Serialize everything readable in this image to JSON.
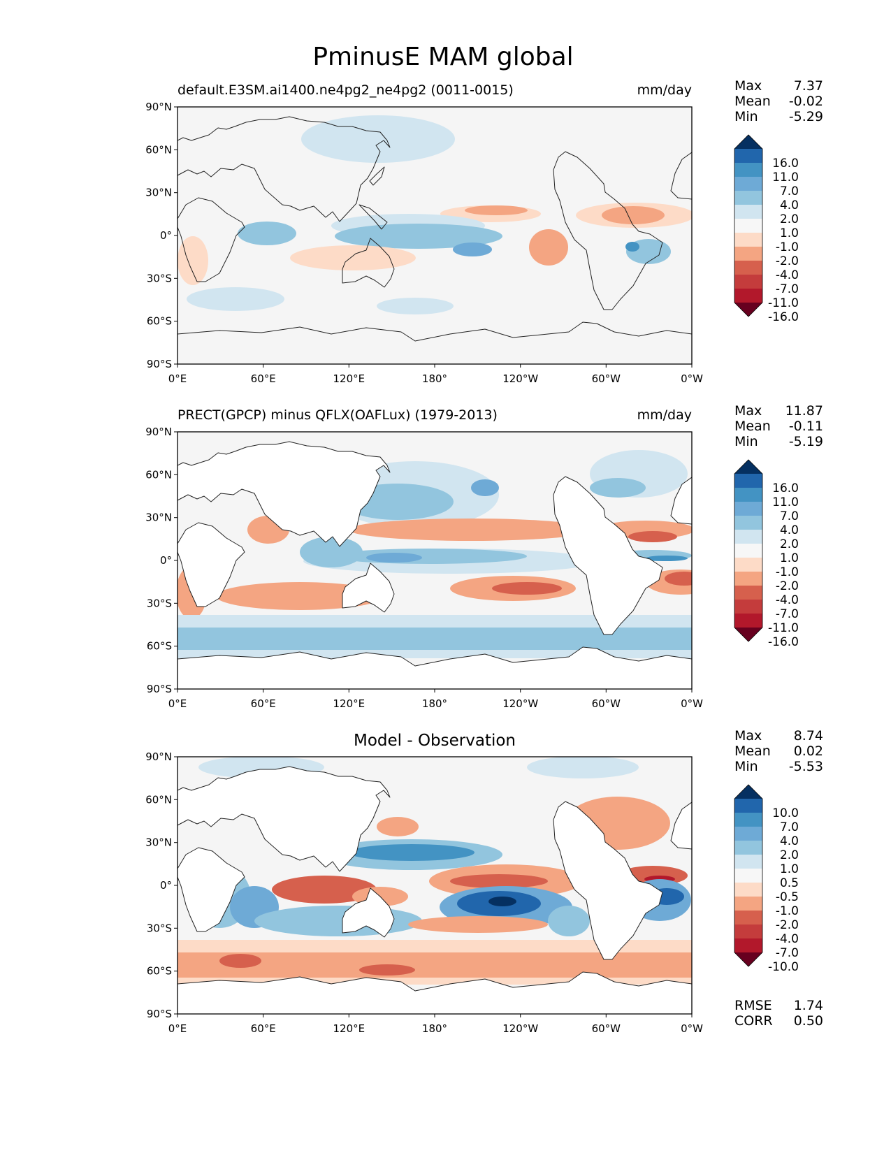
{
  "title": "PminusE MAM global",
  "panels": [
    {
      "id": "model",
      "left_title": "default.E3SM.ai1400.ne4pg2_ne4pg2 (0011-0015)",
      "center_title": "",
      "units": "mm/day",
      "stats": [
        {
          "label": "Max",
          "value": "7.37"
        },
        {
          "label": "Mean",
          "value": "-0.02"
        },
        {
          "label": "Min",
          "value": "-5.29"
        }
      ],
      "colorbar_labels": [
        "16.0",
        "11.0",
        "7.0",
        "4.0",
        "2.0",
        "1.0",
        "-1.0",
        "-2.0",
        "-4.0",
        "-7.0",
        "-11.0",
        "-16.0"
      ],
      "extra_stats": []
    },
    {
      "id": "obs",
      "left_title": "PRECT(GPCP) minus QFLX(OAFLux) (1979-2013)",
      "center_title": "",
      "units": "mm/day",
      "stats": [
        {
          "label": "Max",
          "value": "11.87"
        },
        {
          "label": "Mean",
          "value": "-0.11"
        },
        {
          "label": "Min",
          "value": "-5.19"
        }
      ],
      "colorbar_labels": [
        "16.0",
        "11.0",
        "7.0",
        "4.0",
        "2.0",
        "1.0",
        "-1.0",
        "-2.0",
        "-4.0",
        "-7.0",
        "-11.0",
        "-16.0"
      ],
      "extra_stats": []
    },
    {
      "id": "diff",
      "left_title": "",
      "center_title": "Model - Observation",
      "units": "",
      "stats": [
        {
          "label": "Max",
          "value": "8.74"
        },
        {
          "label": "Mean",
          "value": "0.02"
        },
        {
          "label": "Min",
          "value": "-5.53"
        }
      ],
      "colorbar_labels": [
        "10.0",
        "7.0",
        "4.0",
        "2.0",
        "1.0",
        "0.5",
        "-0.5",
        "-1.0",
        "-2.0",
        "-4.0",
        "-7.0",
        "-10.0"
      ],
      "extra_stats": [
        {
          "label": "RMSE",
          "value": "1.74"
        },
        {
          "label": "CORR",
          "value": "0.50"
        }
      ]
    }
  ],
  "x_ticks": [
    "0°E",
    "60°E",
    "120°E",
    "180°",
    "120°W",
    "60°W",
    "0°W"
  ],
  "y_ticks": [
    "90°N",
    "60°N",
    "30°N",
    "0°",
    "30°S",
    "60°S",
    "90°S"
  ],
  "colormap": [
    "#053061",
    "#2166ac",
    "#4393c3",
    "#6eaad6",
    "#92c5de",
    "#d1e5f0",
    "#f7f7f7",
    "#fddbc7",
    "#f4a582",
    "#d6604d",
    "#c43c3c",
    "#b2182b",
    "#67001f"
  ]
}
